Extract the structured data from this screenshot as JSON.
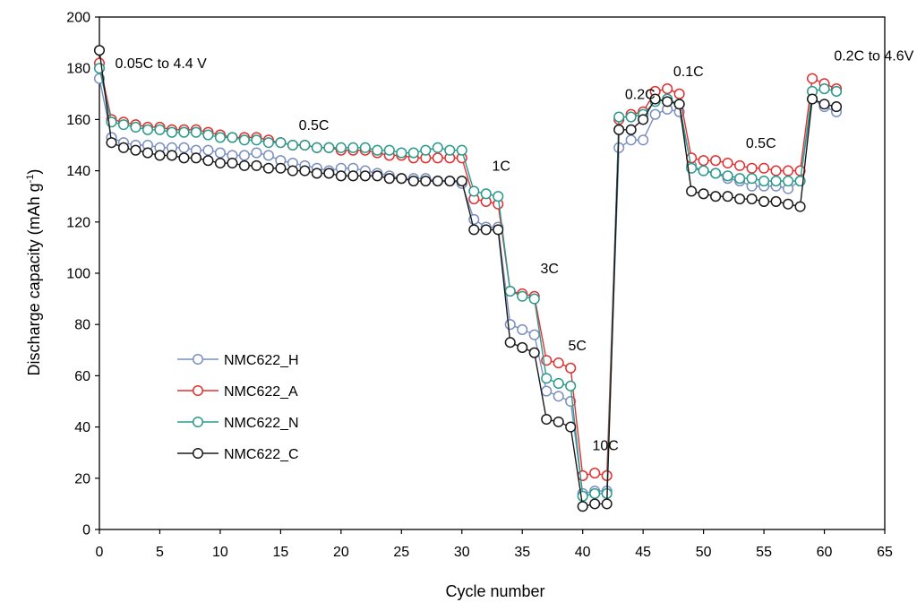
{
  "chart_data": {
    "type": "line",
    "title": "",
    "xlabel": "Cycle number",
    "ylabel_main": "Discharge capacity (mAh g",
    "ylabel_sup": "-1",
    "ylabel_close": ")",
    "xlim": [
      0,
      65
    ],
    "ylim": [
      0,
      200
    ],
    "xticks": [
      0,
      5,
      10,
      15,
      20,
      25,
      30,
      35,
      40,
      45,
      50,
      55,
      60,
      65
    ],
    "yticks": [
      0,
      20,
      40,
      60,
      80,
      100,
      120,
      140,
      160,
      180,
      200
    ],
    "grid": false,
    "legend_position": "lower-left",
    "annotations": [
      {
        "text": "0.05C to 4.4 V",
        "x": 1.3,
        "y": 180
      },
      {
        "text": "0.5C",
        "x": 16.5,
        "y": 156
      },
      {
        "text": "1C",
        "x": 32.5,
        "y": 140
      },
      {
        "text": "3C",
        "x": 36.5,
        "y": 100
      },
      {
        "text": "5C",
        "x": 38.8,
        "y": 70
      },
      {
        "text": "10C",
        "x": 40.8,
        "y": 31
      },
      {
        "text": "0.2C",
        "x": 43.5,
        "y": 168
      },
      {
        "text": "0.1C",
        "x": 47.5,
        "y": 177
      },
      {
        "text": "0.5C",
        "x": 53.5,
        "y": 149
      },
      {
        "text": "0.2C to 4.6V",
        "x": 60.8,
        "y": 183
      }
    ],
    "x": [
      0,
      1,
      2,
      3,
      4,
      5,
      6,
      7,
      8,
      9,
      10,
      11,
      12,
      13,
      14,
      15,
      16,
      17,
      18,
      19,
      20,
      21,
      22,
      23,
      24,
      25,
      26,
      27,
      28,
      29,
      30,
      31,
      32,
      33,
      34,
      35,
      36,
      37,
      38,
      39,
      40,
      41,
      42,
      43,
      44,
      45,
      46,
      47,
      48,
      49,
      50,
      51,
      52,
      53,
      54,
      55,
      56,
      57,
      58,
      59,
      60,
      61
    ],
    "series": [
      {
        "name": "NMC622_H",
        "color": "#7a8fc0",
        "values": [
          176,
          153,
          151,
          150,
          150,
          149,
          149,
          149,
          148,
          148,
          147,
          146,
          146,
          147,
          146,
          144,
          143,
          142,
          141,
          140,
          141,
          141,
          140,
          139,
          138,
          137,
          137,
          137,
          136,
          136,
          135,
          121,
          118,
          118,
          80,
          78,
          76,
          54,
          52,
          50,
          14,
          15,
          15,
          149,
          152,
          152,
          162,
          164,
          163,
          142,
          140,
          139,
          137,
          136,
          134,
          134,
          134,
          133,
          136,
          168,
          165,
          163
        ]
      },
      {
        "name": "NMC622_A",
        "color": "#e03030",
        "values": [
          182,
          160,
          159,
          158,
          157,
          157,
          156,
          156,
          156,
          155,
          154,
          153,
          153,
          153,
          152,
          151,
          150,
          150,
          149,
          149,
          148,
          148,
          148,
          147,
          146,
          146,
          145,
          145,
          145,
          145,
          145,
          129,
          128,
          127,
          93,
          92,
          91,
          66,
          65,
          63,
          21,
          22,
          21,
          160,
          162,
          163,
          171,
          172,
          170,
          145,
          144,
          144,
          143,
          142,
          141,
          141,
          140,
          140,
          140,
          176,
          174,
          172
        ]
      },
      {
        "name": "NMC622_N",
        "color": "#2a9a8a",
        "values": [
          180,
          159,
          158,
          157,
          156,
          156,
          155,
          155,
          155,
          154,
          153,
          153,
          152,
          152,
          151,
          151,
          150,
          150,
          149,
          149,
          149,
          149,
          149,
          148,
          148,
          147,
          147,
          148,
          149,
          148,
          148,
          132,
          131,
          130,
          93,
          91,
          90,
          59,
          57,
          56,
          13,
          14,
          14,
          161,
          161,
          162,
          167,
          168,
          166,
          141,
          140,
          139,
          138,
          137,
          137,
          136,
          136,
          136,
          136,
          171,
          172,
          171
        ]
      },
      {
        "name": "NMC622_C",
        "color": "#1a1a1a",
        "values": [
          187,
          151,
          149,
          148,
          147,
          146,
          146,
          145,
          145,
          144,
          143,
          143,
          142,
          142,
          141,
          141,
          140,
          140,
          139,
          139,
          138,
          138,
          138,
          138,
          137,
          137,
          136,
          136,
          136,
          136,
          136,
          117,
          117,
          117,
          73,
          71,
          69,
          43,
          42,
          40,
          9,
          10,
          10,
          156,
          156,
          160,
          168,
          167,
          166,
          132,
          131,
          130,
          130,
          129,
          129,
          128,
          128,
          127,
          126,
          168,
          166,
          165
        ]
      }
    ]
  }
}
